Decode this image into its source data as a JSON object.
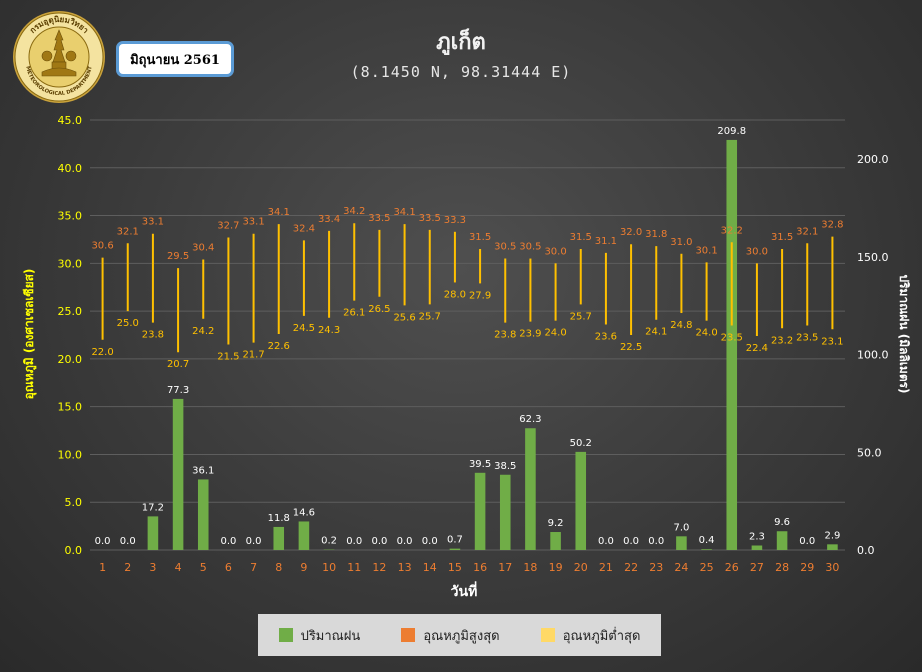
{
  "header": {
    "month_label": "มิถุนายน 2561",
    "logo": {
      "top_text": "กรมอุตุนิยมวิทยา",
      "bottom_text": "METEOROLOGICAL DEPARTMENT"
    }
  },
  "colors": {
    "rain": "#70ad47",
    "max_temp": "#ed7d31",
    "min_temp": "#ffc000",
    "range_line": "#ffc000",
    "left_axis_text": "#ffff00",
    "right_axis_text": "#ffffff",
    "x_tick_text": "#ed7d31",
    "rain_label_text": "#ffffff"
  },
  "chart_data": {
    "type": "bar",
    "title": "ภูเก็ต",
    "subtitle": "(8.1450 N, 98.31444 E)",
    "xlabel": "วันที่",
    "ylabel_left": "อุณหภูมิ (องศาเซลเซียส)",
    "ylabel_right": "ปริมาณฝน (มิลลิเมตร)",
    "ylim_left": [
      0,
      45
    ],
    "ylim_right": [
      0,
      220
    ],
    "yticks_left": [
      "0.0",
      "5.0",
      "10.0",
      "15.0",
      "20.0",
      "25.0",
      "30.0",
      "35.0",
      "40.0",
      "45.0"
    ],
    "yticks_right": [
      "0.0",
      "50.0",
      "100.0",
      "150.0",
      "200.0"
    ],
    "grid": true,
    "legend_position": "bottom",
    "categories": [
      "1",
      "2",
      "3",
      "4",
      "5",
      "6",
      "7",
      "8",
      "9",
      "10",
      "11",
      "12",
      "13",
      "14",
      "15",
      "16",
      "17",
      "18",
      "19",
      "20",
      "21",
      "22",
      "23",
      "24",
      "25",
      "26",
      "27",
      "28",
      "29",
      "30"
    ],
    "series": [
      {
        "name": "ปริมาณฝน",
        "type": "bar",
        "axis": "right",
        "values": [
          0.0,
          0.0,
          17.2,
          77.3,
          36.1,
          0.0,
          0.0,
          11.8,
          14.6,
          0.2,
          0.0,
          0.0,
          0.0,
          0.0,
          0.7,
          39.5,
          38.5,
          62.3,
          9.2,
          50.2,
          0.0,
          0.0,
          0.0,
          7.0,
          0.4,
          209.8,
          2.3,
          9.6,
          0.0,
          2.9
        ],
        "labels": [
          "0.0",
          "0.0",
          "17.2",
          "77.3",
          "36.1",
          "0.0",
          "0.0",
          "11.8",
          "14.6",
          "0.2",
          "0.0",
          "0.0",
          "0.0",
          "0.0",
          "0.7",
          "39.5",
          "38.5",
          "62.3",
          "9.2",
          "50.2",
          "0.0",
          "0.0",
          "0.0",
          "7.0",
          "0.4",
          "209.8",
          "2.3",
          "9.6",
          "0.0",
          "2.9"
        ]
      },
      {
        "name": "อุณหภูมิสูงสุด",
        "type": "marker",
        "axis": "left",
        "values": [
          30.6,
          32.1,
          33.1,
          29.5,
          30.4,
          32.7,
          33.1,
          34.1,
          32.4,
          33.4,
          34.2,
          33.5,
          34.1,
          33.5,
          33.3,
          31.5,
          30.5,
          30.5,
          30.0,
          31.5,
          31.1,
          32.0,
          31.8,
          31.0,
          30.1,
          32.2,
          30.0,
          31.5,
          32.1,
          32.8
        ],
        "labels": [
          "30.6",
          "32.1",
          "33.1",
          "29.5",
          "30.4",
          "32.7",
          "33.1",
          "34.1",
          "32.4",
          "33.4",
          "34.2",
          "33.5",
          "34.1",
          "33.5",
          "33.3",
          "31.5",
          "30.5",
          "30.5",
          "30.0",
          "31.5",
          "31.1",
          "32.0",
          "31.8",
          "31.0",
          "30.1",
          "32.2",
          "30.0",
          "31.5",
          "32.1",
          "32.8"
        ]
      },
      {
        "name": "อุณหภูมิต่ำสุด",
        "type": "marker",
        "axis": "left",
        "values": [
          22.0,
          25.0,
          23.8,
          20.7,
          24.2,
          21.5,
          21.7,
          22.6,
          24.5,
          24.3,
          26.1,
          26.5,
          25.6,
          25.7,
          28.0,
          27.9,
          23.8,
          23.9,
          24.0,
          25.7,
          23.6,
          22.5,
          24.1,
          24.8,
          24.0,
          23.5,
          22.4,
          23.2,
          23.5,
          23.1
        ],
        "labels": [
          "22.0",
          "25.0",
          "23.8",
          "20.7",
          "24.2",
          "21.5",
          "21.7",
          "22.6",
          "24.5",
          "24.3",
          "26.1",
          "26.5",
          "25.6",
          "25.7",
          "28.0",
          "27.9",
          "23.8",
          "23.9",
          "24.0",
          "25.7",
          "23.6",
          "22.5",
          "24.1",
          "24.8",
          "24.0",
          "23.5",
          "22.4",
          "23.2",
          "23.5",
          "23.1"
        ]
      }
    ]
  }
}
